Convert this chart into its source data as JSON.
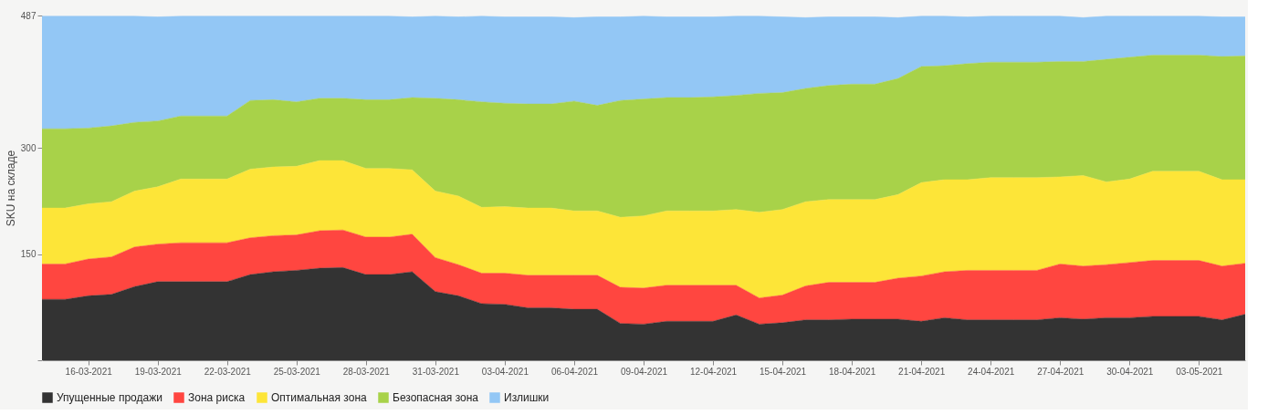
{
  "chart_data": {
    "type": "area",
    "stacked": true,
    "ylabel": "SKU на складе",
    "legend": "bottom",
    "x": [
      "2021-03-14",
      "2021-03-15",
      "2021-03-16",
      "2021-03-17",
      "2021-03-18",
      "2021-03-19",
      "2021-03-20",
      "2021-03-21",
      "2021-03-22",
      "2021-03-23",
      "2021-03-24",
      "2021-03-25",
      "2021-03-26",
      "2021-03-27",
      "2021-03-28",
      "2021-03-29",
      "2021-03-30",
      "2021-03-31",
      "2021-04-01",
      "2021-04-02",
      "2021-04-03",
      "2021-04-04",
      "2021-04-05",
      "2021-04-06",
      "2021-04-07",
      "2021-04-08",
      "2021-04-09",
      "2021-04-10",
      "2021-04-11",
      "2021-04-12",
      "2021-04-13",
      "2021-04-14",
      "2021-04-15",
      "2021-04-16",
      "2021-04-17",
      "2021-04-18",
      "2021-04-19",
      "2021-04-20",
      "2021-04-21",
      "2021-04-22",
      "2021-04-23",
      "2021-04-24",
      "2021-04-25",
      "2021-04-26",
      "2021-04-27",
      "2021-04-28",
      "2021-04-29",
      "2021-04-30",
      "2021-05-01",
      "2021-05-02",
      "2021-05-03",
      "2021-05-04",
      "2021-05-05"
    ],
    "xlim": [
      "2021-03-14",
      "2021-05-05"
    ],
    "xticks": [
      {
        "value": "2021-03-16",
        "label": "16-03-2021"
      },
      {
        "value": "2021-03-19",
        "label": "19-03-2021"
      },
      {
        "value": "2021-03-22",
        "label": "22-03-2021"
      },
      {
        "value": "2021-03-25",
        "label": "25-03-2021"
      },
      {
        "value": "2021-03-28",
        "label": "28-03-2021"
      },
      {
        "value": "2021-03-31",
        "label": "31-03-2021"
      },
      {
        "value": "2021-04-03",
        "label": "03-04-2021"
      },
      {
        "value": "2021-04-06",
        "label": "06-04-2021"
      },
      {
        "value": "2021-04-09",
        "label": "09-04-2021"
      },
      {
        "value": "2021-04-12",
        "label": "12-04-2021"
      },
      {
        "value": "2021-04-15",
        "label": "15-04-2021"
      },
      {
        "value": "2021-04-18",
        "label": "18-04-2021"
      },
      {
        "value": "2021-04-21",
        "label": "21-04-2021"
      },
      {
        "value": "2021-04-24",
        "label": "24-04-2021"
      },
      {
        "value": "2021-04-27",
        "label": "27-04-2021"
      },
      {
        "value": "2021-04-30",
        "label": "30-04-2021"
      },
      {
        "value": "2021-05-03",
        "label": "03-05-2021"
      }
    ],
    "ylim": [
      0,
      487
    ],
    "yticks": [
      {
        "value": 0,
        "label": null
      },
      150,
      300,
      487
    ],
    "series": [
      {
        "name": "Упущенные продажи",
        "color": "#333333",
        "values": [
          86,
          86,
          91,
          93,
          104,
          111,
          111,
          111,
          111,
          121,
          125,
          127,
          130,
          131,
          121,
          121,
          125,
          97,
          91,
          80,
          79,
          74,
          74,
          72,
          72,
          52,
          51,
          55,
          55,
          55,
          64,
          51,
          53,
          57,
          57,
          58,
          58,
          58,
          55,
          60,
          57,
          57,
          57,
          57,
          60,
          58,
          60,
          60,
          62,
          62,
          62,
          57,
          65
        ]
      },
      {
        "name": "Зона риска",
        "color": "#ff4640",
        "values": [
          50,
          50,
          52,
          53,
          56,
          53,
          55,
          55,
          55,
          52,
          51,
          50,
          53,
          53,
          53,
          53,
          53,
          48,
          44,
          43,
          44,
          46,
          46,
          48,
          48,
          51,
          51,
          51,
          51,
          51,
          42,
          37,
          39,
          48,
          53,
          52,
          52,
          58,
          64,
          65,
          70,
          70,
          70,
          70,
          76,
          75,
          75,
          78,
          79,
          79,
          79,
          76,
          72
        ]
      },
      {
        "name": "Оптимальная зона",
        "color": "#fde538",
        "values": [
          79,
          79,
          78,
          78,
          79,
          81,
          90,
          90,
          90,
          97,
          97,
          97,
          99,
          98,
          97,
          97,
          91,
          94,
          97,
          93,
          94,
          95,
          95,
          91,
          91,
          99,
          102,
          105,
          105,
          105,
          107,
          121,
          121,
          119,
          117,
          117,
          117,
          118,
          132,
          130,
          128,
          131,
          131,
          131,
          123,
          128,
          117,
          118,
          126,
          126,
          126,
          122,
          118
        ]
      },
      {
        "name": "Безопасная зона",
        "color": "#a8d249",
        "values": [
          112,
          112,
          107,
          107,
          97,
          93,
          89,
          89,
          89,
          97,
          95,
          91,
          88,
          88,
          97,
          97,
          102,
          131,
          136,
          149,
          146,
          147,
          147,
          155,
          149,
          165,
          165,
          160,
          160,
          161,
          161,
          168,
          165,
          160,
          161,
          163,
          163,
          164,
          164,
          161,
          164,
          163,
          163,
          163,
          163,
          161,
          173,
          172,
          164,
          164,
          164,
          174,
          175
        ]
      },
      {
        "name": "Излишки",
        "color": "#93c7f5",
        "values": [
          159,
          159,
          158,
          155,
          150,
          147,
          141,
          141,
          141,
          119,
          118,
          121,
          116,
          116,
          118,
          118,
          114,
          116,
          117,
          121,
          122,
          123,
          123,
          118,
          125,
          118,
          117,
          114,
          114,
          113,
          112,
          109,
          107,
          100,
          97,
          95,
          95,
          86,
          71,
          70,
          66,
          65,
          65,
          65,
          64,
          62,
          61,
          58,
          55,
          55,
          55,
          56,
          55
        ]
      }
    ]
  }
}
